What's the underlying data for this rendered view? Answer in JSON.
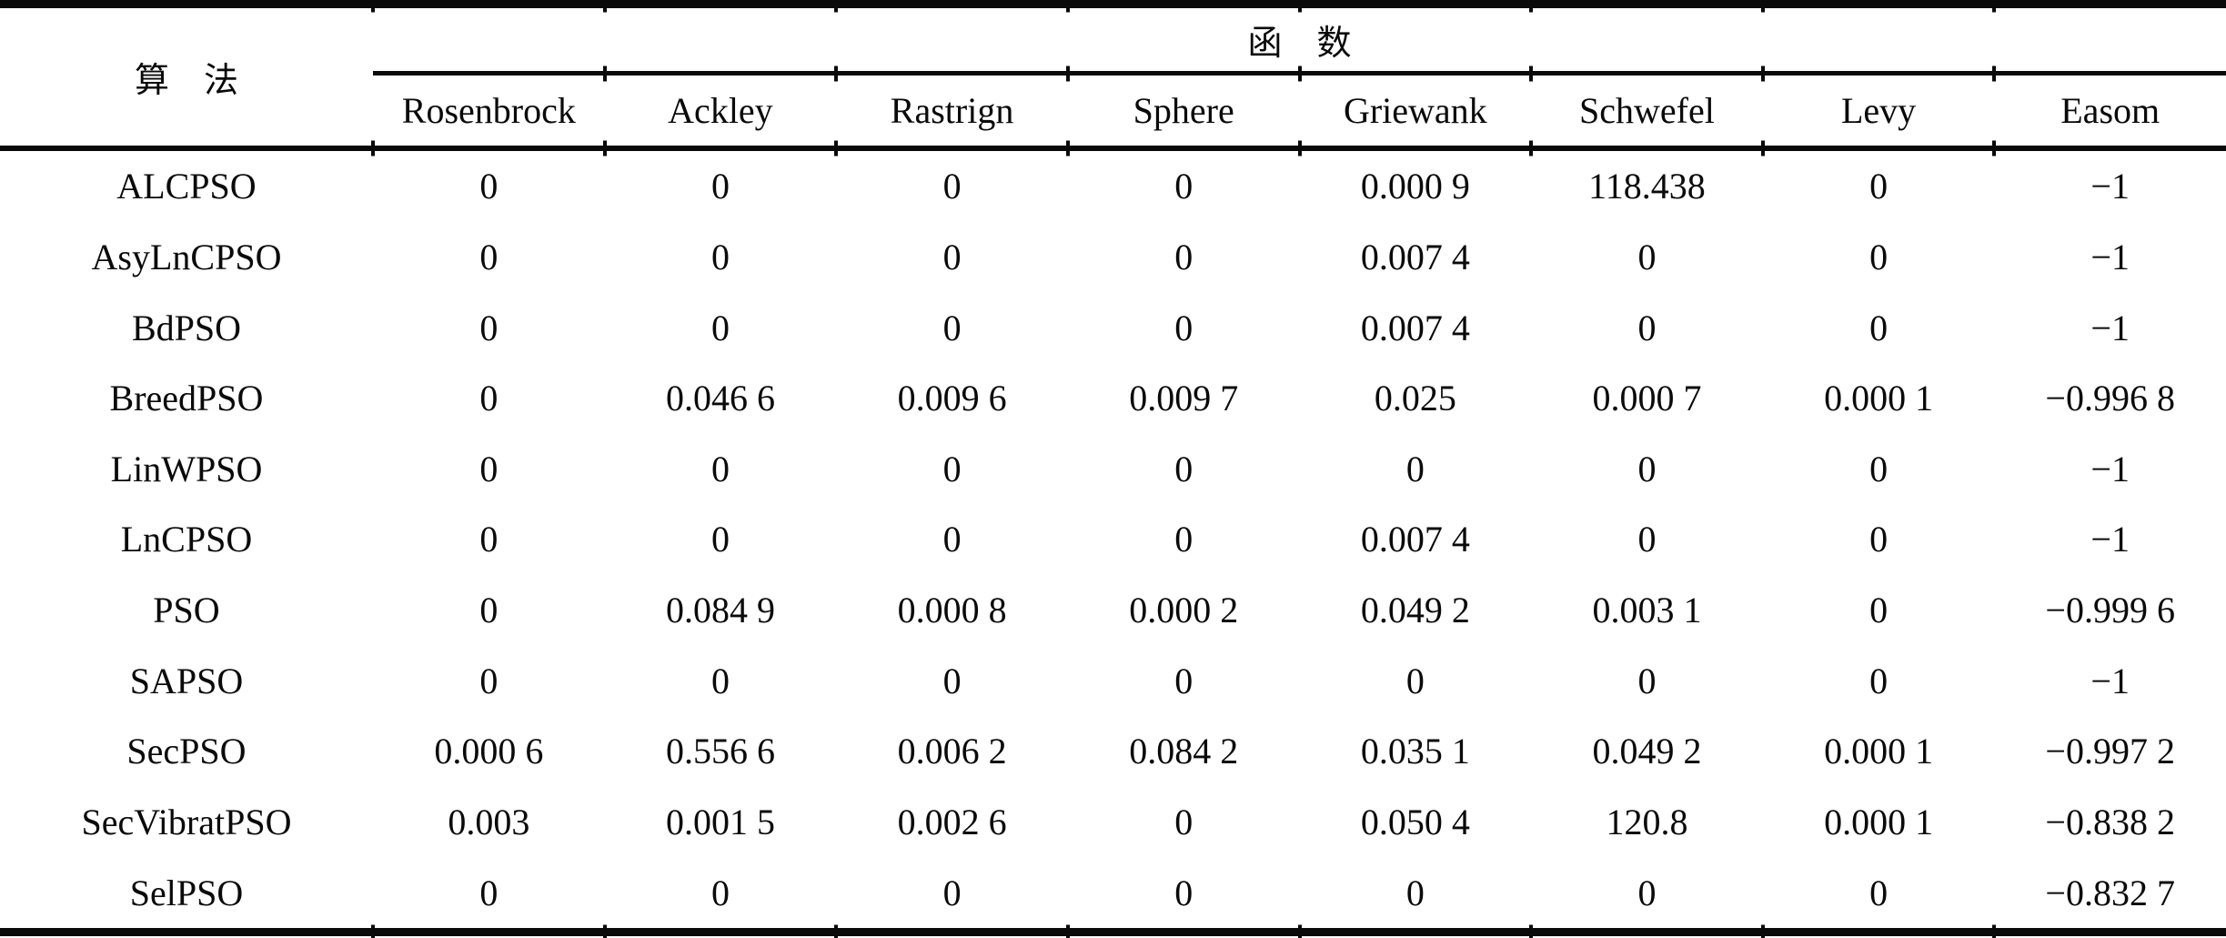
{
  "table": {
    "row_header": "算　法",
    "group_header": "函　数",
    "columns": [
      "Rosenbrock",
      "Ackley",
      "Rastrign",
      "Sphere",
      "Griewank",
      "Schwefel",
      "Levy",
      "Easom"
    ],
    "rows": [
      {
        "algorithm": "ALCPSO",
        "values": [
          "0",
          "0",
          "0",
          "0",
          "0.000 9",
          "118.438",
          "0",
          "−1"
        ]
      },
      {
        "algorithm": "AsyLnCPSO",
        "values": [
          "0",
          "0",
          "0",
          "0",
          "0.007 4",
          "0",
          "0",
          "−1"
        ]
      },
      {
        "algorithm": "BdPSO",
        "values": [
          "0",
          "0",
          "0",
          "0",
          "0.007 4",
          "0",
          "0",
          "−1"
        ]
      },
      {
        "algorithm": "BreedPSO",
        "values": [
          "0",
          "0.046 6",
          "0.009 6",
          "0.009 7",
          "0.025",
          "0.000 7",
          "0.000 1",
          "−0.996 8"
        ]
      },
      {
        "algorithm": "LinWPSO",
        "values": [
          "0",
          "0",
          "0",
          "0",
          "0",
          "0",
          "0",
          "−1"
        ]
      },
      {
        "algorithm": "LnCPSO",
        "values": [
          "0",
          "0",
          "0",
          "0",
          "0.007 4",
          "0",
          "0",
          "−1"
        ]
      },
      {
        "algorithm": "PSO",
        "values": [
          "0",
          "0.084 9",
          "0.000 8",
          "0.000 2",
          "0.049 2",
          "0.003 1",
          "0",
          "−0.999 6"
        ]
      },
      {
        "algorithm": "SAPSO",
        "values": [
          "0",
          "0",
          "0",
          "0",
          "0",
          "0",
          "0",
          "−1"
        ]
      },
      {
        "algorithm": "SecPSO",
        "values": [
          "0.000 6",
          "0.556 6",
          "0.006 2",
          "0.084 2",
          "0.035 1",
          "0.049 2",
          "0.000 1",
          "−0.997 2"
        ]
      },
      {
        "algorithm": "SecVibratPSO",
        "values": [
          "0.003",
          "0.001 5",
          "0.002 6",
          "0",
          "0.050 4",
          "120.8",
          "0.000 1",
          "−0.838 2"
        ]
      },
      {
        "algorithm": "SelPSO",
        "values": [
          "0",
          "0",
          "0",
          "0",
          "0",
          "0",
          "0",
          "−0.832 7"
        ]
      }
    ]
  },
  "colors": {
    "ink": "#0a0a0a",
    "background": "#ffffff"
  }
}
